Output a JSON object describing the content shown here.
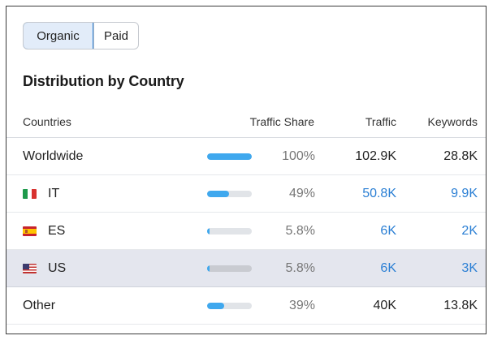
{
  "toggle": {
    "organic_label": "Organic",
    "paid_label": "Paid",
    "active": "Organic"
  },
  "heading": "Distribution by Country",
  "table": {
    "columns": {
      "countries": "Countries",
      "traffic_share": "Traffic Share",
      "traffic": "Traffic",
      "keywords": "Keywords"
    },
    "rows": [
      {
        "name": "Worldwide",
        "flag": null,
        "share_label": "100%",
        "share_fraction": 1.0,
        "traffic": "102.9K",
        "keywords": "28.8K",
        "linked": false,
        "highlight": false
      },
      {
        "name": "IT",
        "flag": "flag-italy-icon",
        "share_label": "49%",
        "share_fraction": 0.49,
        "traffic": "50.8K",
        "keywords": "9.9K",
        "linked": true,
        "highlight": false
      },
      {
        "name": "ES",
        "flag": "flag-spain-icon",
        "share_label": "5.8%",
        "share_fraction": 0.058,
        "traffic": "6K",
        "keywords": "2K",
        "linked": true,
        "highlight": false
      },
      {
        "name": "US",
        "flag": "flag-usa-icon",
        "share_label": "5.8%",
        "share_fraction": 0.058,
        "traffic": "6K",
        "keywords": "3K",
        "linked": true,
        "highlight": true
      },
      {
        "name": "Other",
        "flag": null,
        "share_label": "39%",
        "share_fraction": 0.39,
        "traffic": "40K",
        "keywords": "13.8K",
        "linked": false,
        "highlight": false
      }
    ]
  },
  "colors": {
    "accent": "#2b7fd4",
    "bar_fill": "#3fa8ee",
    "bar_track": "#e1e4e8",
    "highlight_row": "#e4e6ee"
  }
}
